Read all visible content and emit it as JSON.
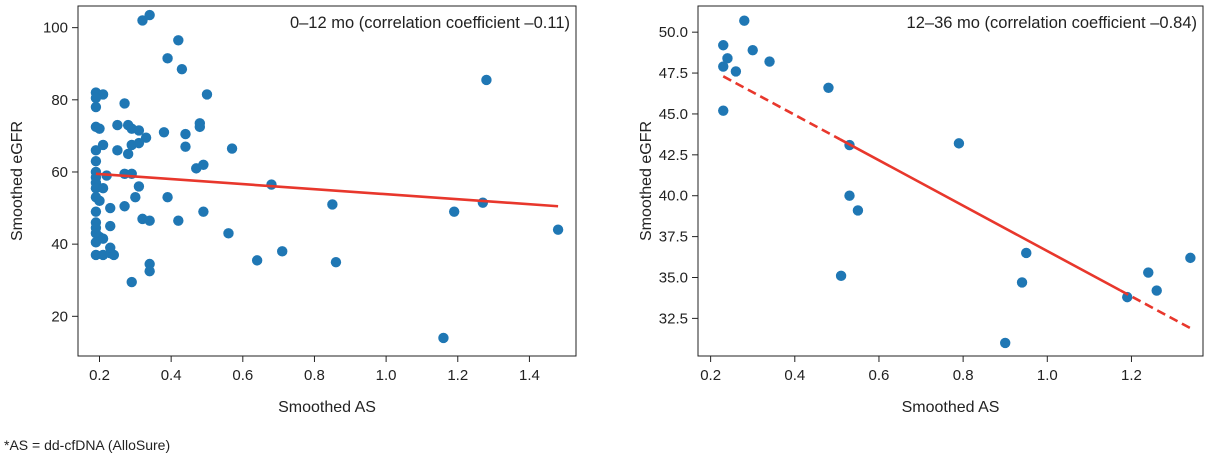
{
  "chart_data": [
    {
      "type": "scatter",
      "annotation": "0–12 mo (correlation coefficient –0.11)",
      "xlabel": "Smoothed AS",
      "ylabel": "Smoothed eGFR",
      "xlim": [
        0.14,
        1.53
      ],
      "ylim": [
        9,
        106
      ],
      "xticks": [
        0.2,
        0.4,
        0.6,
        0.8,
        1.0,
        1.2,
        1.4
      ],
      "xtick_labels": [
        "0.2",
        "0.4",
        "0.6",
        "0.8",
        "1.0",
        "1.2",
        "1.4"
      ],
      "yticks": [
        20,
        40,
        60,
        80,
        100
      ],
      "ytick_labels": [
        "20",
        "40",
        "60",
        "80",
        "100"
      ],
      "grid": false,
      "point_color": "#1f77b4",
      "line_color": "#e8372c",
      "trend_line": {
        "x": [
          0.19,
          1.48
        ],
        "y": [
          59.5,
          50.5
        ],
        "style": "solid"
      },
      "points": [
        {
          "x": 0.32,
          "y": 102
        },
        {
          "x": 0.34,
          "y": 103.5
        },
        {
          "x": 0.42,
          "y": 96.5
        },
        {
          "x": 0.39,
          "y": 91.5
        },
        {
          "x": 0.43,
          "y": 88.5
        },
        {
          "x": 0.19,
          "y": 82
        },
        {
          "x": 0.21,
          "y": 81.5
        },
        {
          "x": 0.19,
          "y": 80.5
        },
        {
          "x": 0.19,
          "y": 78
        },
        {
          "x": 0.27,
          "y": 79
        },
        {
          "x": 0.5,
          "y": 81.5
        },
        {
          "x": 0.19,
          "y": 72.5
        },
        {
          "x": 0.2,
          "y": 72
        },
        {
          "x": 0.25,
          "y": 73
        },
        {
          "x": 0.28,
          "y": 73
        },
        {
          "x": 0.29,
          "y": 72
        },
        {
          "x": 0.31,
          "y": 71.5
        },
        {
          "x": 0.38,
          "y": 71
        },
        {
          "x": 0.44,
          "y": 70.5
        },
        {
          "x": 0.48,
          "y": 73.5
        },
        {
          "x": 0.48,
          "y": 72.5
        },
        {
          "x": 0.33,
          "y": 69.5
        },
        {
          "x": 0.19,
          "y": 66
        },
        {
          "x": 0.21,
          "y": 67.5
        },
        {
          "x": 0.25,
          "y": 66
        },
        {
          "x": 0.28,
          "y": 65
        },
        {
          "x": 0.29,
          "y": 67.5
        },
        {
          "x": 0.31,
          "y": 68
        },
        {
          "x": 0.44,
          "y": 67
        },
        {
          "x": 0.57,
          "y": 66.5
        },
        {
          "x": 0.19,
          "y": 63
        },
        {
          "x": 0.47,
          "y": 61
        },
        {
          "x": 0.49,
          "y": 62
        },
        {
          "x": 0.19,
          "y": 60
        },
        {
          "x": 0.19,
          "y": 58.5
        },
        {
          "x": 0.19,
          "y": 57
        },
        {
          "x": 0.19,
          "y": 55.5
        },
        {
          "x": 0.19,
          "y": 53
        },
        {
          "x": 0.2,
          "y": 52
        },
        {
          "x": 0.21,
          "y": 55.5
        },
        {
          "x": 0.22,
          "y": 59
        },
        {
          "x": 0.27,
          "y": 59.5
        },
        {
          "x": 0.29,
          "y": 59.5
        },
        {
          "x": 0.31,
          "y": 56
        },
        {
          "x": 0.3,
          "y": 53
        },
        {
          "x": 0.39,
          "y": 53
        },
        {
          "x": 0.27,
          "y": 50.5
        },
        {
          "x": 0.23,
          "y": 50
        },
        {
          "x": 0.19,
          "y": 49
        },
        {
          "x": 0.19,
          "y": 46
        },
        {
          "x": 0.19,
          "y": 44.5
        },
        {
          "x": 0.19,
          "y": 43
        },
        {
          "x": 0.2,
          "y": 42
        },
        {
          "x": 0.19,
          "y": 40.5
        },
        {
          "x": 0.21,
          "y": 41.5
        },
        {
          "x": 0.23,
          "y": 45
        },
        {
          "x": 0.32,
          "y": 47
        },
        {
          "x": 0.34,
          "y": 46.5
        },
        {
          "x": 0.42,
          "y": 46.5
        },
        {
          "x": 0.49,
          "y": 49
        },
        {
          "x": 0.19,
          "y": 37
        },
        {
          "x": 0.21,
          "y": 37
        },
        {
          "x": 0.23,
          "y": 37.5
        },
        {
          "x": 0.24,
          "y": 37
        },
        {
          "x": 0.23,
          "y": 39
        },
        {
          "x": 0.56,
          "y": 43
        },
        {
          "x": 0.34,
          "y": 34.5
        },
        {
          "x": 0.34,
          "y": 32.5
        },
        {
          "x": 0.64,
          "y": 35.5
        },
        {
          "x": 0.71,
          "y": 38
        },
        {
          "x": 0.86,
          "y": 35
        },
        {
          "x": 0.68,
          "y": 56.5
        },
        {
          "x": 0.85,
          "y": 51
        },
        {
          "x": 0.29,
          "y": 29.5
        },
        {
          "x": 1.16,
          "y": 14
        },
        {
          "x": 1.19,
          "y": 49
        },
        {
          "x": 1.27,
          "y": 51.5
        },
        {
          "x": 1.28,
          "y": 85.5
        },
        {
          "x": 1.48,
          "y": 44
        }
      ]
    },
    {
      "type": "scatter",
      "annotation": "12–36 mo (correlation coefficient –0.84)",
      "xlabel": "Smoothed AS",
      "ylabel": "Smoothed eGFR",
      "xlim": [
        0.17,
        1.37
      ],
      "ylim": [
        30.2,
        51.6
      ],
      "xticks": [
        0.2,
        0.4,
        0.6,
        0.8,
        1.0,
        1.2
      ],
      "xtick_labels": [
        "0.2",
        "0.4",
        "0.6",
        "0.8",
        "1.0",
        "1.2"
      ],
      "yticks": [
        32.5,
        35.0,
        37.5,
        40.0,
        42.5,
        45.0,
        47.5,
        50.0
      ],
      "ytick_labels": [
        "32.5",
        "35.0",
        "37.5",
        "40.0",
        "42.5",
        "45.0",
        "47.5",
        "50.0"
      ],
      "grid": false,
      "point_color": "#1f77b4",
      "line_color": "#e8372c",
      "trend_line": {
        "x": [
          0.23,
          1.34
        ],
        "y": [
          47.3,
          31.9
        ],
        "style": "dashed-solid"
      },
      "points": [
        {
          "x": 0.28,
          "y": 50.7
        },
        {
          "x": 0.23,
          "y": 49.2
        },
        {
          "x": 0.3,
          "y": 48.9
        },
        {
          "x": 0.24,
          "y": 48.4
        },
        {
          "x": 0.34,
          "y": 48.2
        },
        {
          "x": 0.23,
          "y": 47.9
        },
        {
          "x": 0.26,
          "y": 47.6
        },
        {
          "x": 0.48,
          "y": 46.6
        },
        {
          "x": 0.23,
          "y": 45.2
        },
        {
          "x": 0.53,
          "y": 43.1
        },
        {
          "x": 0.79,
          "y": 43.2
        },
        {
          "x": 0.53,
          "y": 40.0
        },
        {
          "x": 0.55,
          "y": 39.1
        },
        {
          "x": 0.51,
          "y": 35.1
        },
        {
          "x": 0.95,
          "y": 36.5
        },
        {
          "x": 0.94,
          "y": 34.7
        },
        {
          "x": 0.9,
          "y": 31.0
        },
        {
          "x": 1.19,
          "y": 33.8
        },
        {
          "x": 1.24,
          "y": 35.3
        },
        {
          "x": 1.26,
          "y": 34.2
        },
        {
          "x": 1.34,
          "y": 36.2
        }
      ]
    }
  ],
  "footnote": "*AS = dd-cfDNA (AlloSure)"
}
